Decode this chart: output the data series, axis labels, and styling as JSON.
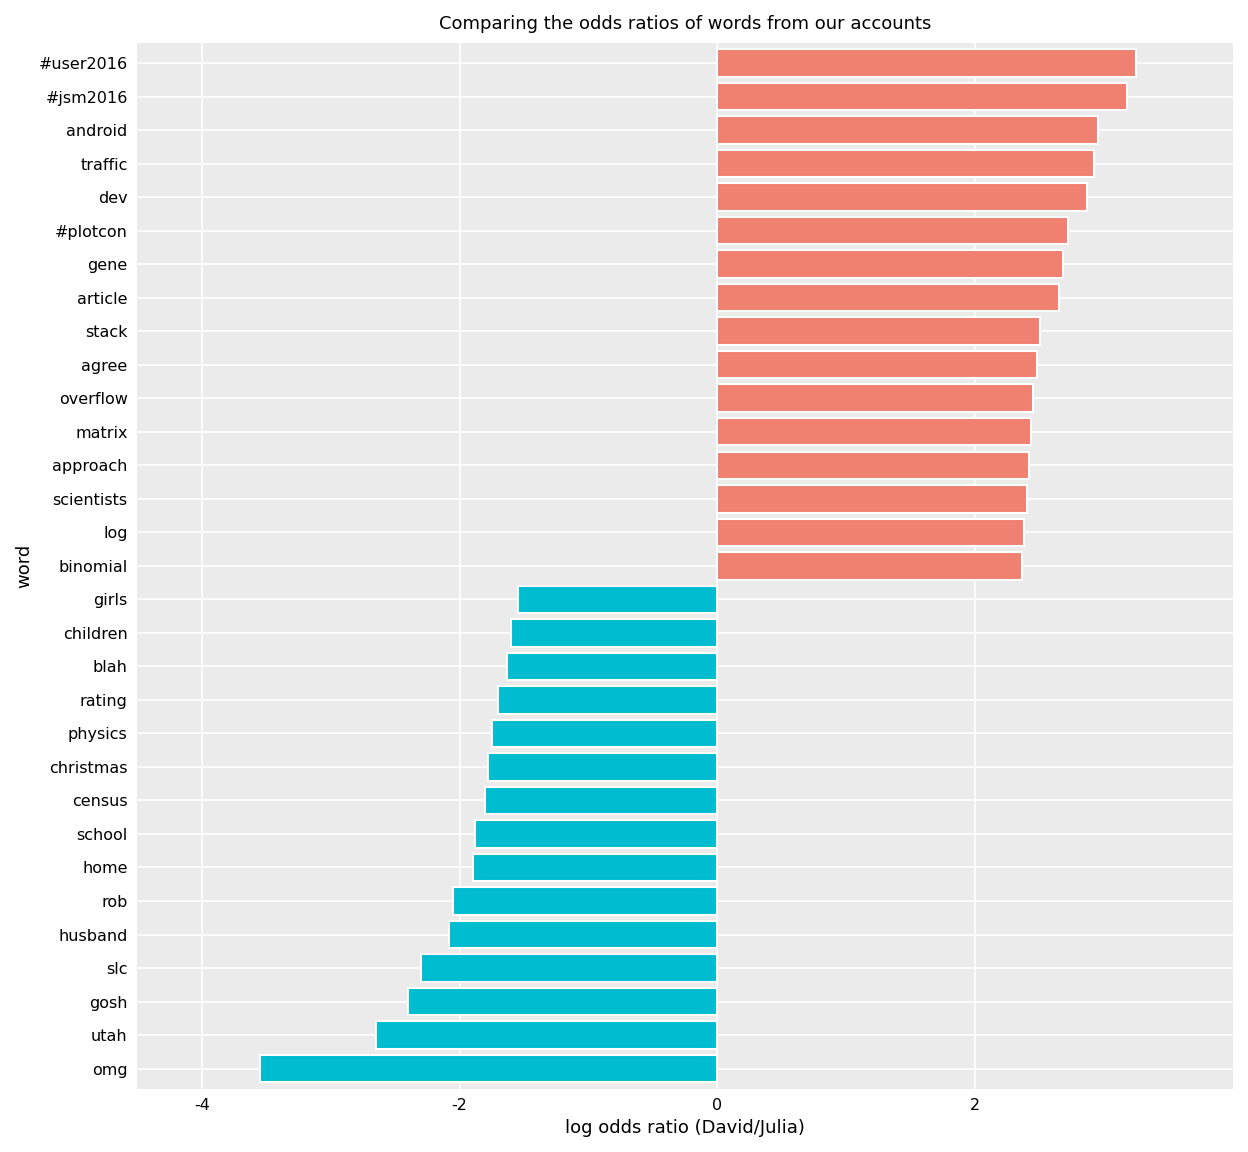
{
  "title": "Comparing the odds ratios of words from our accounts",
  "xlabel": "log odds ratio (David/Julia)",
  "ylabel": "word",
  "background_color": "#ebebeb",
  "bar_color_positive": "#f08070",
  "bar_color_negative": "#00bcd0",
  "grid_color": "#ffffff",
  "words": [
    "#user2016",
    "#jsm2016",
    "android",
    "traffic",
    "dev",
    "#plotcon",
    "gene",
    "article",
    "stack",
    "agree",
    "overflow",
    "matrix",
    "approach",
    "scientists",
    "log",
    "binomial",
    "girls",
    "children",
    "blah",
    "rating",
    "physics",
    "christmas",
    "census",
    "school",
    "home",
    "rob",
    "husband",
    "slc",
    "gosh",
    "utah",
    "omg"
  ],
  "values": [
    3.25,
    3.18,
    2.95,
    2.92,
    2.87,
    2.72,
    2.68,
    2.65,
    2.5,
    2.48,
    2.45,
    2.43,
    2.42,
    2.4,
    2.38,
    2.36,
    -1.55,
    -1.6,
    -1.63,
    -1.7,
    -1.75,
    -1.78,
    -1.8,
    -1.88,
    -1.9,
    -2.05,
    -2.08,
    -2.3,
    -2.4,
    -2.65,
    -3.55
  ],
  "xlim": [
    -4.5,
    4.0
  ],
  "xticks": [
    -4,
    -2,
    0,
    2
  ],
  "title_fontsize": 13,
  "axis_label_fontsize": 13,
  "tick_fontsize": 11.5
}
